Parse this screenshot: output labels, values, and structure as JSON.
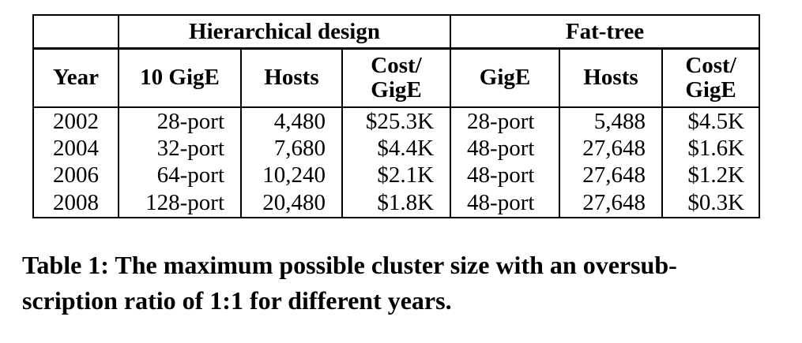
{
  "table": {
    "group_headers": {
      "hierarchical": "Hierarchical design",
      "fat_tree": "Fat-tree"
    },
    "column_headers": {
      "year": "Year",
      "h_switch": "10 GigE",
      "h_hosts": "Hosts",
      "h_cost_line1": "Cost/",
      "h_cost_line2": "GigE",
      "f_switch": "GigE",
      "f_hosts": "Hosts",
      "f_cost_line1": "Cost/",
      "f_cost_line2": "GigE"
    },
    "rows": [
      [
        "2002",
        "28-port",
        "4,480",
        "$25.3K",
        "28-port",
        "5,488",
        "$4.5K"
      ],
      [
        "2004",
        "32-port",
        "7,680",
        "$4.4K",
        "48-port",
        "27,648",
        "$1.6K"
      ],
      [
        "2006",
        "64-port",
        "10,240",
        "$2.1K",
        "48-port",
        "27,648",
        "$1.2K"
      ],
      [
        "2008",
        "128-port",
        "20,480",
        "$1.8K",
        "48-port",
        "27,648",
        "$0.3K"
      ]
    ]
  },
  "caption": {
    "line1": "Table 1: The maximum possible cluster size with an oversub-",
    "line2": "scription ratio of 1:1 for different years."
  }
}
